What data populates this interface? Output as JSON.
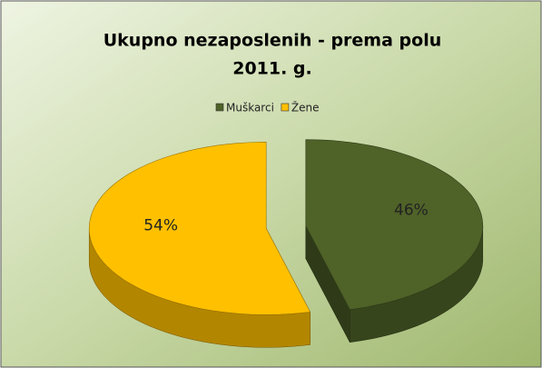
{
  "chart_data": {
    "type": "pie3d",
    "title": "Ukupno nezaposlenih - prema polu",
    "subtitle": "2011. g.",
    "categories": [
      "Muškarci",
      "Žene"
    ],
    "values": [
      46,
      54
    ],
    "value_labels": [
      "46%",
      "54%"
    ],
    "colors": [
      "#4f6228",
      "#ffc000"
    ],
    "legend": "top"
  }
}
